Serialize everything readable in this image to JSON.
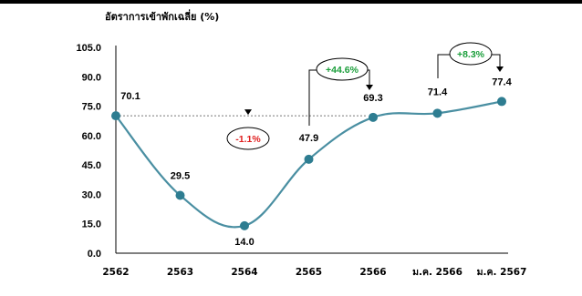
{
  "chart_data": {
    "type": "line",
    "ylabel": "อัตราการเข้าพักเฉลี่ย (%)",
    "categories": [
      "2562",
      "2563",
      "2564",
      "2565",
      "2566",
      "ม.ค. 2566",
      "ม.ค. 2567"
    ],
    "series": [
      {
        "values": [
          70.1,
          29.5,
          14.0,
          47.9,
          69.3,
          71.4,
          77.4
        ]
      }
    ],
    "data_labels": [
      "70.1",
      "29.5",
      "14.0",
      "47.9",
      "69.3",
      "71.4",
      "77.4"
    ],
    "yticks": [
      "0.0",
      "15.0",
      "30.0",
      "45.0",
      "60.0",
      "75.0",
      "90.0",
      "105.0"
    ],
    "ylim": [
      0,
      105
    ],
    "reference_line": {
      "value": 70.1,
      "style": "dotted"
    },
    "annotations": [
      {
        "text": "-1.1%",
        "color": "#e02020"
      },
      {
        "text": "+44.6%",
        "color": "#1a9e3a"
      },
      {
        "text": "+8.3%",
        "color": "#1a9e3a"
      }
    ],
    "line_color": "#4a8fa2",
    "marker_color": "#2e7d91",
    "grid": false,
    "legend": "none"
  }
}
